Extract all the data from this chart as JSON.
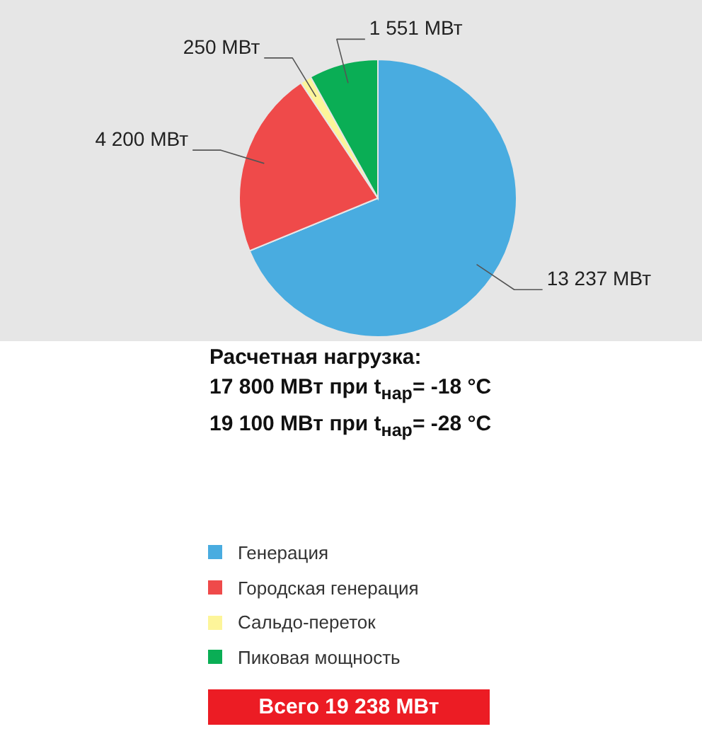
{
  "chart_data": {
    "type": "pie",
    "categories": [
      "Генерация",
      "Городская генерация",
      "Сальдо-переток",
      "Пиковая мощность"
    ],
    "values": [
      13237,
      4200,
      250,
      1551
    ],
    "colors": [
      "#49ace0",
      "#ef4a4a",
      "#fdf59a",
      "#0aae55"
    ],
    "value_labels": [
      "13 237 МВт",
      "4 200 МВт",
      "250 МВт",
      "1 551 МВт"
    ],
    "legend": "bottom",
    "annotations": [
      "Расчетная нагрузка:",
      "17 800 МВт при t$_{нар}$= -18 °C",
      "19 100 МВт при t$_{нар}$= -28 °C",
      "Всего 19 238 МВт"
    ]
  }
}
